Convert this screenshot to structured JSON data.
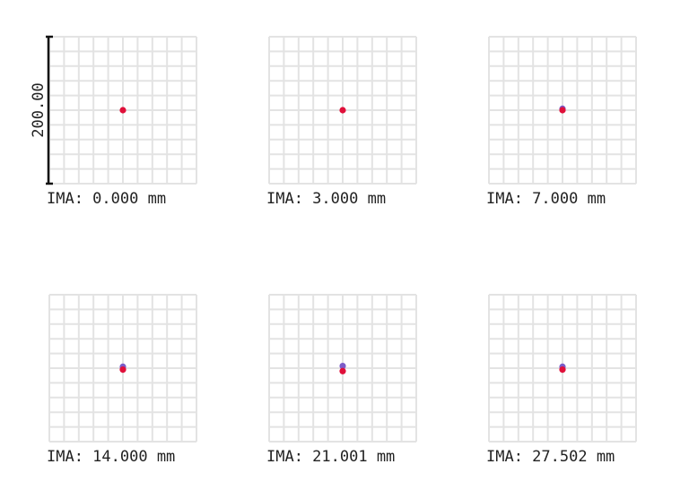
{
  "chart_data": {
    "type": "scatter",
    "plot_kind": "spot diagram",
    "scale_bar_label": "200.00",
    "grid": true,
    "grid_divisions": 10,
    "series_colors": [
      "#7b5cc8",
      "#e0103a"
    ],
    "panels": [
      {
        "field_label": "IMA: 0.000 mm",
        "points": [
          {
            "dx": 0.0,
            "dy": 0.0,
            "color": "#e0103a"
          }
        ]
      },
      {
        "field_label": "IMA: 3.000 mm",
        "points": [
          {
            "dx": 0.0,
            "dy": 0.0,
            "color": "#e0103a"
          }
        ]
      },
      {
        "field_label": "IMA: 7.000 mm",
        "points": [
          {
            "dx": 0.0,
            "dy": 2.0,
            "color": "#7b5cc8"
          },
          {
            "dx": 0.0,
            "dy": 0.0,
            "color": "#e0103a"
          }
        ]
      },
      {
        "field_label": "IMA: 14.000 mm",
        "points": [
          {
            "dx": 0.0,
            "dy": 2.0,
            "color": "#7b5cc8"
          },
          {
            "dx": 0.0,
            "dy": -2.0,
            "color": "#e0103a"
          }
        ]
      },
      {
        "field_label": "IMA: 21.001 mm",
        "points": [
          {
            "dx": 0.0,
            "dy": 3.0,
            "color": "#7b5cc8"
          },
          {
            "dx": 0.0,
            "dy": -4.0,
            "color": "#e0103a"
          }
        ]
      },
      {
        "field_label": "IMA: 27.502 mm",
        "points": [
          {
            "dx": 0.0,
            "dy": 2.0,
            "color": "#7b5cc8"
          },
          {
            "dx": 0.0,
            "dy": -2.0,
            "color": "#e0103a"
          }
        ]
      }
    ]
  }
}
